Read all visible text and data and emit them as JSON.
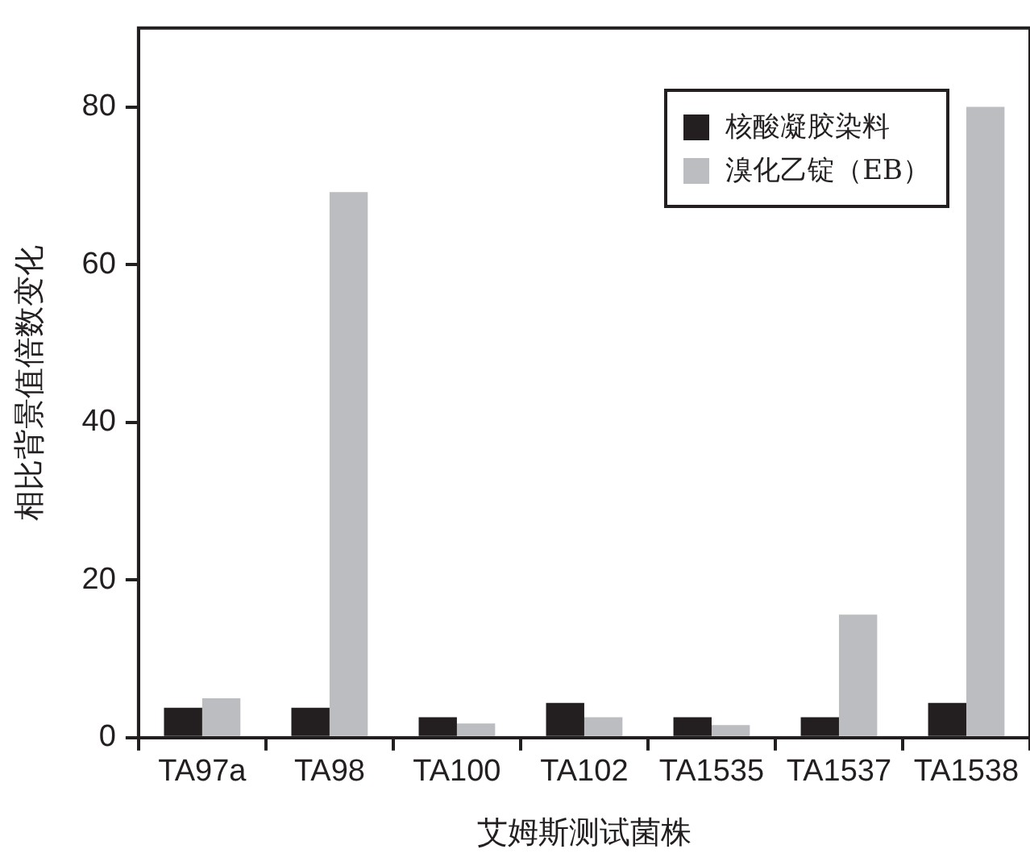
{
  "chart_data": {
    "type": "bar",
    "xlabel": "艾姆斯测试菌株",
    "ylabel": "相比背景值倍数变化",
    "categories": [
      "TA97a",
      "TA98",
      "TA100",
      "TA102",
      "TA1535",
      "TA1537",
      "TA1538"
    ],
    "series": [
      {
        "name": "核酸凝胶染料",
        "color": "#231f20",
        "values": [
          3.8,
          3.8,
          2.6,
          4.4,
          2.6,
          2.6,
          4.4
        ]
      },
      {
        "name": "溴化乙锭（EB）",
        "color": "#bcbdc0",
        "values": [
          5.0,
          69.2,
          1.8,
          2.6,
          1.6,
          15.6,
          80
        ]
      }
    ],
    "ylim": [
      0,
      90
    ],
    "yticks": [
      0,
      20,
      40,
      60,
      80
    ],
    "grid": false,
    "legend": "top right"
  }
}
